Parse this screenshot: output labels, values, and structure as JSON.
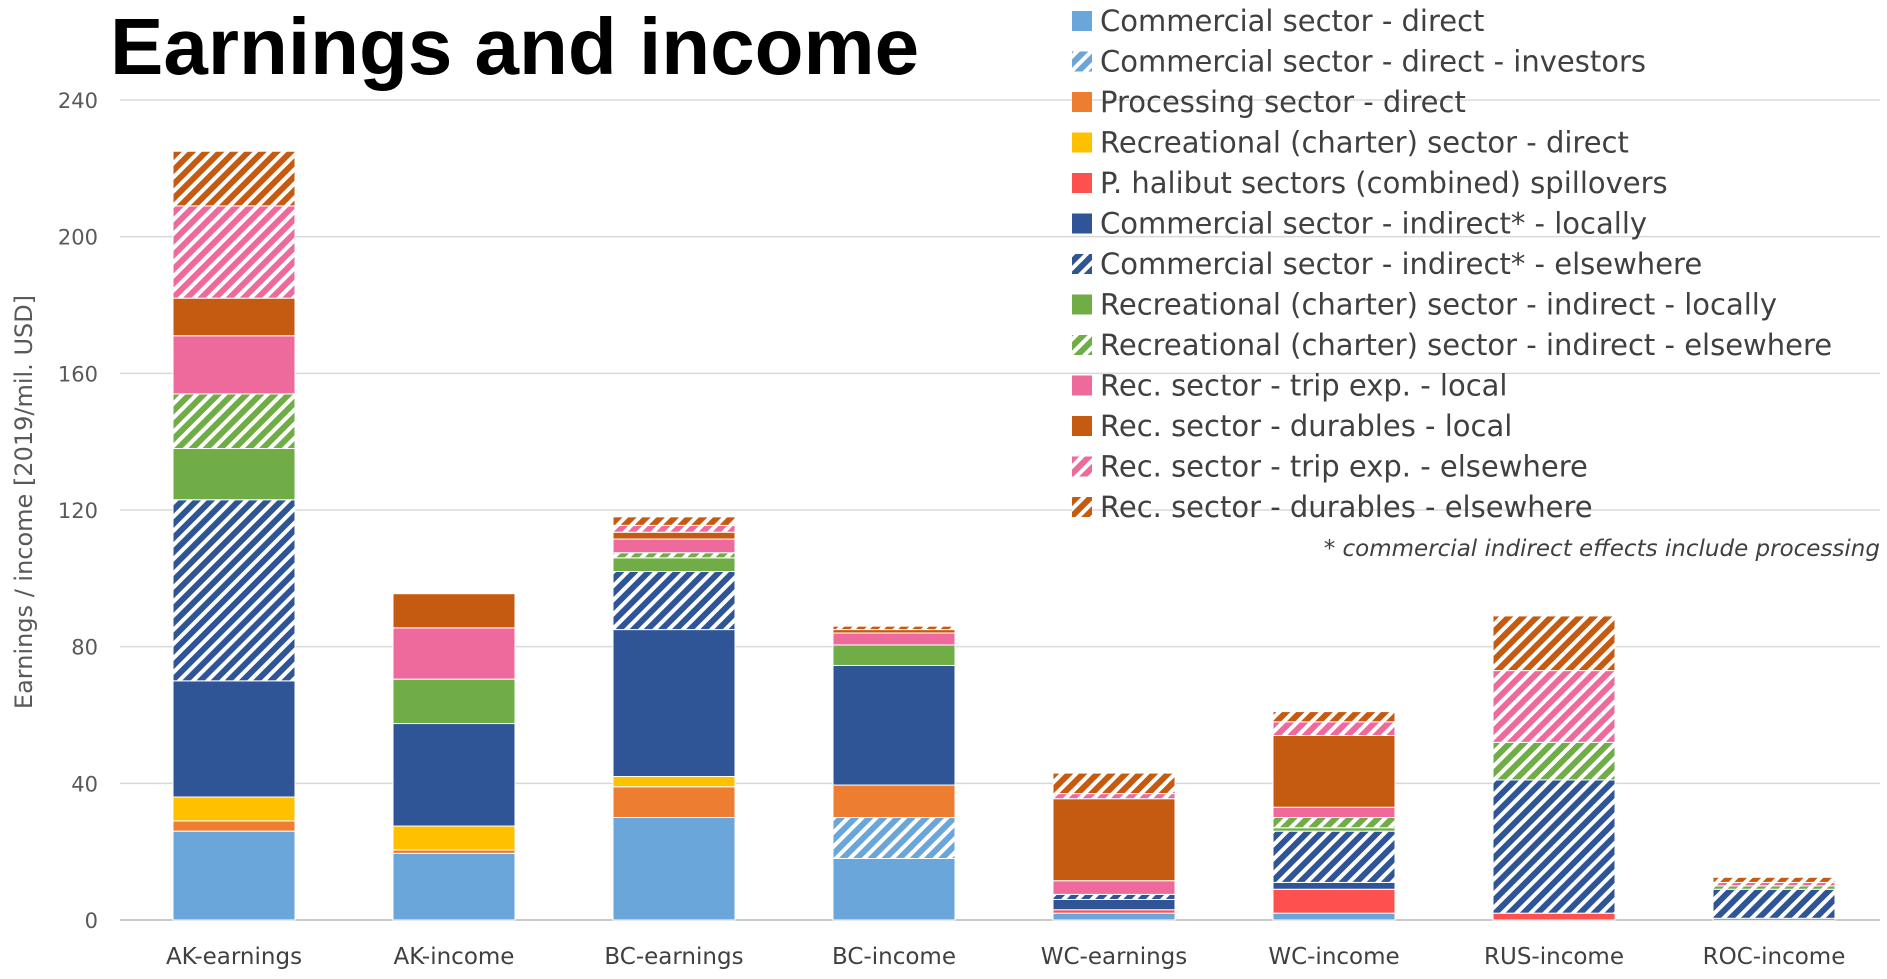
{
  "chart_data": {
    "type": "bar",
    "stacked": true,
    "title": "Earnings and income",
    "ylabel": "Earnings / income [2019/mil. USD]",
    "xlabel": "",
    "ylim": [
      0,
      240
    ],
    "yticks": [
      0,
      40,
      80,
      120,
      160,
      200,
      240
    ],
    "grid": true,
    "legend_position": "top-right",
    "footnote": "* commercial indirect effects include processing",
    "categories": [
      "AK-earnings",
      "AK-income",
      "BC-earnings",
      "BC-income",
      "WC-earnings",
      "WC-income",
      "RUS-income",
      "ROC-income"
    ],
    "series": [
      {
        "name": "Commercial sector - direct",
        "color": "#6aa6da",
        "hatched": false,
        "values": [
          26,
          19.5,
          30,
          18,
          2,
          2,
          0,
          0
        ]
      },
      {
        "name": "Commercial sector - direct - investors",
        "color": "#6aa6da",
        "hatched": true,
        "values": [
          0,
          0,
          0,
          12,
          0,
          0,
          0,
          0
        ]
      },
      {
        "name": "Processing sector - direct",
        "color": "#ed7d31",
        "hatched": false,
        "values": [
          3,
          1,
          9,
          9.5,
          0,
          0,
          0,
          0
        ]
      },
      {
        "name": "Recreational (charter) sector - direct",
        "color": "#ffc000",
        "hatched": false,
        "values": [
          7,
          7,
          3,
          0,
          0,
          0,
          0,
          0
        ]
      },
      {
        "name": "P. halibut sectors (combined) spillovers",
        "color": "#ff5050",
        "hatched": false,
        "values": [
          0,
          0,
          0,
          0,
          1,
          7,
          2,
          0
        ]
      },
      {
        "name": "Commercial sector - indirect* - locally",
        "color": "#2f5597",
        "hatched": false,
        "values": [
          34,
          30,
          43,
          35,
          3,
          2,
          0,
          0.5
        ]
      },
      {
        "name": "Commercial sector - indirect* - elsewhere",
        "color": "#2f5597",
        "hatched": true,
        "values": [
          53,
          0,
          17,
          0,
          1.5,
          15,
          39,
          8.5
        ]
      },
      {
        "name": "Recreational (charter) sector - indirect - locally",
        "color": "#70ad47",
        "hatched": false,
        "values": [
          15,
          13,
          4,
          6,
          0,
          1,
          0,
          0
        ]
      },
      {
        "name": "Recreational (charter) sector - indirect - elsewhere",
        "color": "#70ad47",
        "hatched": true,
        "values": [
          16,
          0,
          1.5,
          0,
          0,
          3,
          11,
          1
        ]
      },
      {
        "name": "Rec. sector - trip exp. - local",
        "color": "#ee6a9c",
        "hatched": false,
        "values": [
          17,
          15,
          4,
          3.5,
          4,
          3,
          0,
          0
        ]
      },
      {
        "name": "Rec. sector - durables - local",
        "color": "#c55a11",
        "hatched": false,
        "values": [
          11,
          10,
          2,
          1,
          24,
          21,
          0,
          0
        ]
      },
      {
        "name": "Rec. sector - trip exp. - elsewhere",
        "color": "#ee6a9c",
        "hatched": true,
        "values": [
          27,
          0,
          2,
          0,
          1.5,
          4,
          21,
          1
        ]
      },
      {
        "name": "Rec. sector - durables - elsewhere",
        "color": "#c55a11",
        "hatched": true,
        "values": [
          16,
          0,
          2.5,
          1,
          6,
          3,
          16,
          1.5
        ]
      }
    ]
  }
}
